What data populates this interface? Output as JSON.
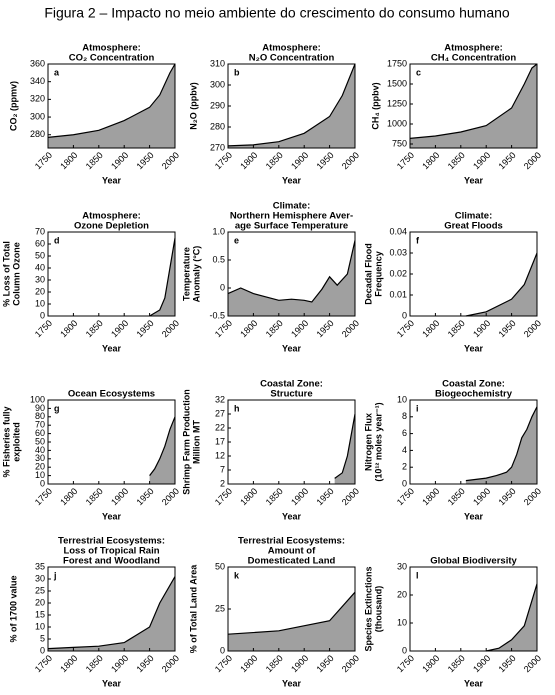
{
  "figure_title": "Figura 2 – Impacto no meio ambiente do crescimento do consumo humano",
  "chart_data": [
    {
      "type": "area",
      "panel_label": "a",
      "title": [
        "Atmosphere:",
        "CO₂ Concentration"
      ],
      "ylabel": [
        "CO₂ (ppmv)"
      ],
      "xlabel": "Year",
      "color": "#a0a0a0",
      "x": [
        1750,
        1800,
        1850,
        1900,
        1950,
        1970,
        1990,
        2000
      ],
      "values": [
        277,
        280,
        285,
        296,
        311,
        325,
        350,
        360
      ],
      "xlim": [
        1750,
        2000
      ],
      "xticks": [
        1750,
        1800,
        1850,
        1900,
        1950,
        2000
      ],
      "ylim": [
        265,
        360
      ],
      "yticks": [
        280,
        300,
        320,
        340,
        360
      ]
    },
    {
      "type": "area",
      "panel_label": "b",
      "title": [
        "Atmosphere:",
        "N₂O Concentration"
      ],
      "ylabel": [
        "N₂O (ppbv)"
      ],
      "xlabel": "Year",
      "color": "#a0a0a0",
      "x": [
        1750,
        1800,
        1850,
        1900,
        1950,
        1975,
        2000
      ],
      "values": [
        271,
        271.5,
        273,
        277,
        285,
        295,
        310
      ],
      "xlim": [
        1750,
        2000
      ],
      "xticks": [
        1750,
        1800,
        1850,
        1900,
        1950,
        2000
      ],
      "ylim": [
        270,
        310
      ],
      "yticks": [
        270,
        280,
        290,
        300,
        310
      ]
    },
    {
      "type": "area",
      "panel_label": "c",
      "title": [
        "Atmosphere:",
        "CH₄ Concentration"
      ],
      "ylabel": [
        "CH₄ (ppbv)"
      ],
      "xlabel": "Year",
      "color": "#a0a0a0",
      "x": [
        1750,
        1800,
        1850,
        1900,
        1950,
        1975,
        1990,
        2000
      ],
      "values": [
        820,
        850,
        900,
        980,
        1200,
        1500,
        1700,
        1750
      ],
      "xlim": [
        1750,
        2000
      ],
      "xticks": [
        1750,
        1800,
        1850,
        1900,
        1950,
        2000
      ],
      "ylim": [
        700,
        1750
      ],
      "yticks": [
        750,
        1000,
        1250,
        1500,
        1750
      ]
    },
    {
      "type": "area",
      "panel_label": "d",
      "title": [
        "Atmosphere:",
        "Ozone Depletion"
      ],
      "ylabel": [
        "% Loss of Total",
        "Column Ozone"
      ],
      "xlabel": "Year",
      "color": "#a0a0a0",
      "x": [
        1950,
        1970,
        1980,
        1990,
        2000
      ],
      "values": [
        0,
        5,
        15,
        40,
        65
      ],
      "xlim": [
        1750,
        2000
      ],
      "xticks": [
        1750,
        1800,
        1850,
        1900,
        1950,
        2000
      ],
      "ylim": [
        0,
        70
      ],
      "yticks": [
        0,
        10,
        20,
        30,
        40,
        50,
        60,
        70
      ]
    },
    {
      "type": "area",
      "panel_label": "e",
      "title": [
        "Climate:",
        "Northern Hemisphere Aver-",
        "age Surface Temperature"
      ],
      "ylabel": [
        "Temperature",
        "Anomaly (°C)"
      ],
      "xlabel": "Year",
      "color": "#a0a0a0",
      "x": [
        1750,
        1775,
        1800,
        1850,
        1875,
        1900,
        1915,
        1935,
        1950,
        1965,
        1985,
        2000
      ],
      "values": [
        -0.1,
        0,
        -0.1,
        -0.22,
        -0.2,
        -0.22,
        -0.25,
        -0.02,
        0.2,
        0.05,
        0.25,
        0.85
      ],
      "xlim": [
        1750,
        2000
      ],
      "xticks": [
        1750,
        1800,
        1850,
        1900,
        1950,
        2000
      ],
      "ylim": [
        -0.5,
        1.0
      ],
      "yticks": [
        -0.5,
        0,
        0.5,
        {
          "value": 1.0,
          "label": "1.0"
        }
      ]
    },
    {
      "type": "area",
      "panel_label": "f",
      "title": [
        "Climate:",
        "Great Floods"
      ],
      "ylabel": [
        "Decadal Flood",
        "Frequency"
      ],
      "xlabel": "Year",
      "color": "#a0a0a0",
      "x": [
        1860,
        1900,
        1950,
        1975,
        2000
      ],
      "values": [
        0,
        0.002,
        0.008,
        0.015,
        0.03
      ],
      "xlim": [
        1750,
        2000
      ],
      "xticks": [
        1750,
        1800,
        1850,
        1900,
        1950,
        2000
      ],
      "ylim": [
        0,
        0.04
      ],
      "yticks": [
        0,
        0.01,
        0.02,
        0.03,
        0.04
      ]
    },
    {
      "type": "area",
      "panel_label": "g",
      "title": [
        "Ocean Ecosystems"
      ],
      "ylabel": [
        "% Fisheries fully",
        "exploited"
      ],
      "xlabel": "Year",
      "color": "#a0a0a0",
      "x": [
        1950,
        1960,
        1970,
        1980,
        1990,
        2000
      ],
      "values": [
        10,
        18,
        30,
        45,
        65,
        80
      ],
      "xlim": [
        1750,
        2000
      ],
      "xticks": [
        1750,
        1800,
        1850,
        1900,
        1950,
        2000
      ],
      "ylim": [
        0,
        100
      ],
      "yticks": [
        0,
        10,
        20,
        30,
        40,
        50,
        60,
        70,
        80,
        90,
        100
      ]
    },
    {
      "type": "area",
      "panel_label": "h",
      "title": [
        "Coastal Zone:",
        "Structure"
      ],
      "ylabel": [
        "Shrimp Farm Production",
        "Million MT"
      ],
      "xlabel": "Year",
      "color": "#a0a0a0",
      "x": [
        1960,
        1975,
        1985,
        1995,
        2000
      ],
      "values": [
        4,
        6,
        12,
        22,
        27
      ],
      "xlim": [
        1750,
        2000
      ],
      "xticks": [
        1750,
        1800,
        1850,
        1900,
        1950,
        2000
      ],
      "ylim": [
        2,
        32
      ],
      "yticks": [
        2,
        7,
        12,
        17,
        22,
        27,
        32
      ]
    },
    {
      "type": "area",
      "panel_label": "i",
      "title": [
        "Coastal Zone:",
        "Biogeochemistry"
      ],
      "ylabel": [
        "Nitrogen Flux",
        "(10¹² moles year⁻¹)"
      ],
      "xlabel": "Year",
      "color": "#a0a0a0",
      "x": [
        1860,
        1900,
        1920,
        1930,
        1940,
        1950,
        1960,
        1970,
        1980,
        1990,
        2000
      ],
      "values": [
        0.4,
        0.7,
        1.0,
        1.2,
        1.4,
        2.0,
        3.5,
        5.5,
        6.5,
        8,
        9.2
      ],
      "xlim": [
        1750,
        2000
      ],
      "xticks": [
        1750,
        1800,
        1850,
        1900,
        1950,
        2000
      ],
      "ylim": [
        0,
        10
      ],
      "yticks": [
        0,
        2,
        4,
        6,
        8,
        10
      ]
    },
    {
      "type": "area",
      "panel_label": "j",
      "title": [
        "Terrestrial Ecosystems:",
        "Loss of Tropical Rain",
        "Forest and Woodland"
      ],
      "ylabel": [
        "% of 1700 value"
      ],
      "xlabel": "Year",
      "color": "#a0a0a0",
      "x": [
        1750,
        1800,
        1850,
        1900,
        1950,
        1970,
        2000
      ],
      "values": [
        1,
        1.5,
        2,
        3.5,
        10,
        20,
        31
      ],
      "xlim": [
        1750,
        2000
      ],
      "xticks": [
        1750,
        1800,
        1850,
        1900,
        1950,
        2000
      ],
      "ylim": [
        0,
        35
      ],
      "yticks": [
        0,
        5,
        10,
        15,
        20,
        25,
        30,
        35
      ]
    },
    {
      "type": "area",
      "panel_label": "k",
      "title": [
        "Terrestrial Ecosystems:",
        "Amount of",
        "Domesticated Land"
      ],
      "ylabel": [
        "% of Total Land Area"
      ],
      "xlabel": "Year",
      "color": "#a0a0a0",
      "x": [
        1750,
        1850,
        1950,
        2000
      ],
      "values": [
        10,
        12,
        18,
        35
      ],
      "xlim": [
        1750,
        2000
      ],
      "xticks": [
        1750,
        1800,
        1850,
        1900,
        1950,
        2000
      ],
      "ylim": [
        0,
        50
      ],
      "yticks": [
        0,
        25,
        50
      ]
    },
    {
      "type": "area",
      "panel_label": "l",
      "title": [
        "Global Biodiversity"
      ],
      "ylabel": [
        "Species Extinctions",
        "(thousand)"
      ],
      "xlabel": "Year",
      "color": "#a0a0a0",
      "x": [
        1900,
        1925,
        1950,
        1975,
        2000
      ],
      "values": [
        0,
        1,
        4,
        9,
        24
      ],
      "xlim": [
        1750,
        2000
      ],
      "xticks": [
        1750,
        1800,
        1850,
        1900,
        1950,
        2000
      ],
      "ylim": [
        0,
        30
      ],
      "yticks": [
        0,
        10,
        20,
        30
      ]
    }
  ]
}
